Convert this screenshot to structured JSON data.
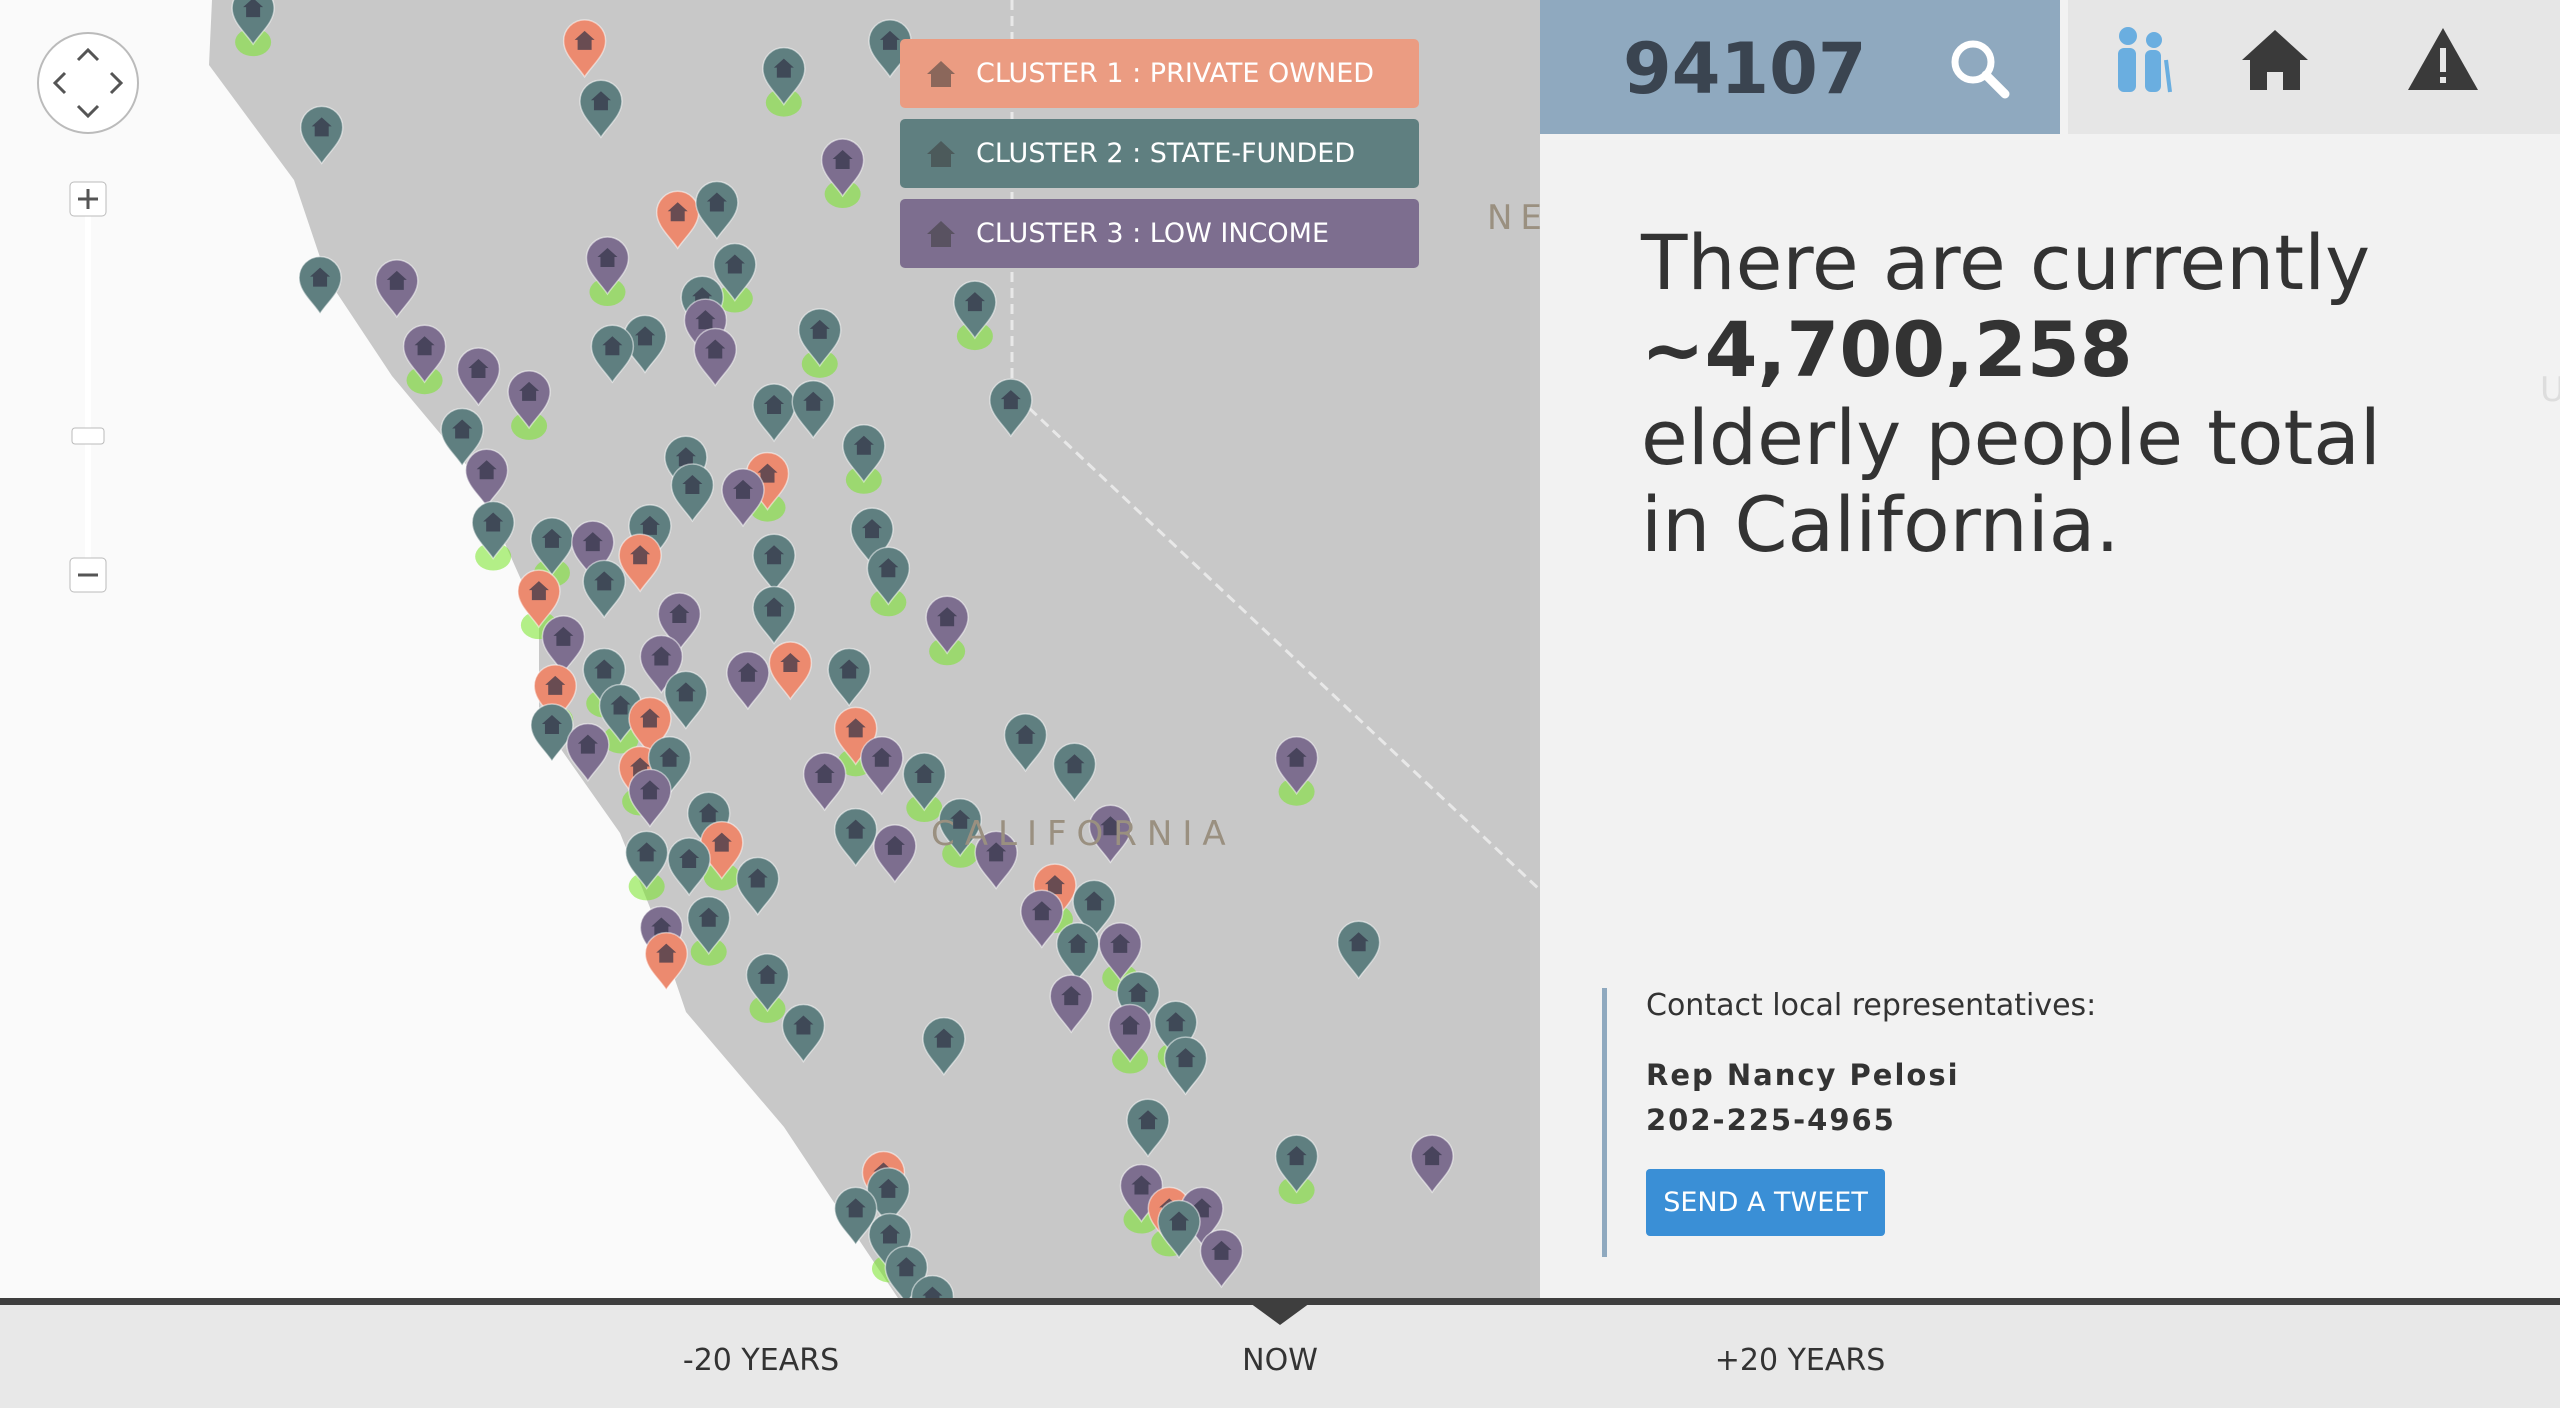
{
  "search": {
    "query": "94107"
  },
  "legend": {
    "items": [
      "CLUSTER 1 : PRIVATE OWNED",
      "CLUSTER 2 : STATE-FUNDED",
      "CLUSTER 3 : LOW INCOME"
    ]
  },
  "map_labels": [
    "NEVADA",
    "CALIFORNIA",
    "UTAH"
  ],
  "info": {
    "lines": [
      "There are currently",
      "~4,700,258",
      "elderly people total",
      "in California."
    ]
  },
  "contact": {
    "heading": "Contact local representatives:",
    "name": "Rep Nancy Pelosi",
    "phone": "202-225-4965",
    "button": "SEND A TWEET"
  },
  "timeline": {
    "labels": [
      "-20 YEARS",
      "NOW",
      "+20 YEARS"
    ]
  }
}
